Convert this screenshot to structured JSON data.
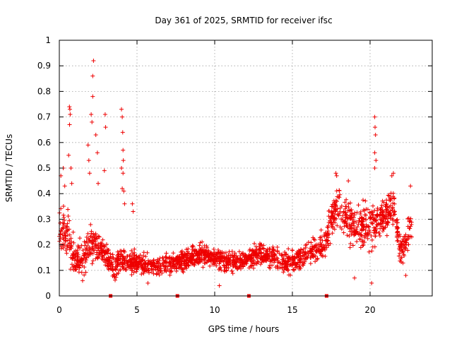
{
  "chart_data": {
    "type": "scatter",
    "title": "Day 361 of 2025, SRMTID for receiver ifsc",
    "xlabel": "GPS time / hours",
    "ylabel": "SRMTID / TECUs",
    "xlim": [
      0,
      24
    ],
    "ylim": [
      0,
      1
    ],
    "x_ticks": [
      0,
      5,
      10,
      15,
      20
    ],
    "y_ticks": [
      0,
      0.1,
      0.2,
      0.3,
      0.4,
      0.5,
      0.6,
      0.7,
      0.8,
      0.9,
      1
    ],
    "grid": true,
    "marker": "+",
    "series_color": "#ee0000",
    "gap_markers_x": [
      3.3,
      7.6,
      12.2,
      17.2
    ],
    "profile": [
      {
        "x": 0.0,
        "center": 0.28,
        "spread": 0.1
      },
      {
        "x": 0.5,
        "center": 0.24,
        "spread": 0.1
      },
      {
        "x": 1.0,
        "center": 0.13,
        "spread": 0.06
      },
      {
        "x": 1.5,
        "center": 0.14,
        "spread": 0.07
      },
      {
        "x": 2.0,
        "center": 0.22,
        "spread": 0.08
      },
      {
        "x": 2.5,
        "center": 0.18,
        "spread": 0.06
      },
      {
        "x": 3.0,
        "center": 0.16,
        "spread": 0.06
      },
      {
        "x": 3.5,
        "center": 0.11,
        "spread": 0.04
      },
      {
        "x": 4.0,
        "center": 0.14,
        "spread": 0.05
      },
      {
        "x": 5.0,
        "center": 0.13,
        "spread": 0.04
      },
      {
        "x": 6.0,
        "center": 0.12,
        "spread": 0.04
      },
      {
        "x": 7.0,
        "center": 0.12,
        "spread": 0.04
      },
      {
        "x": 8.0,
        "center": 0.14,
        "spread": 0.04
      },
      {
        "x": 9.0,
        "center": 0.16,
        "spread": 0.04
      },
      {
        "x": 10.0,
        "center": 0.15,
        "spread": 0.04
      },
      {
        "x": 11.0,
        "center": 0.13,
        "spread": 0.04
      },
      {
        "x": 12.0,
        "center": 0.14,
        "spread": 0.04
      },
      {
        "x": 13.0,
        "center": 0.17,
        "spread": 0.04
      },
      {
        "x": 14.0,
        "center": 0.14,
        "spread": 0.05
      },
      {
        "x": 15.0,
        "center": 0.13,
        "spread": 0.05
      },
      {
        "x": 16.0,
        "center": 0.17,
        "spread": 0.05
      },
      {
        "x": 17.0,
        "center": 0.19,
        "spread": 0.05
      },
      {
        "x": 17.5,
        "center": 0.3,
        "spread": 0.08
      },
      {
        "x": 18.0,
        "center": 0.34,
        "spread": 0.09
      },
      {
        "x": 19.0,
        "center": 0.27,
        "spread": 0.09
      },
      {
        "x": 20.0,
        "center": 0.27,
        "spread": 0.09
      },
      {
        "x": 21.0,
        "center": 0.31,
        "spread": 0.08
      },
      {
        "x": 21.5,
        "center": 0.36,
        "spread": 0.07
      },
      {
        "x": 22.0,
        "center": 0.16,
        "spread": 0.06
      },
      {
        "x": 22.7,
        "center": 0.27,
        "spread": 0.08
      }
    ],
    "peaks": [
      {
        "x": 0.1,
        "y": 0.47
      },
      {
        "x": 0.25,
        "y": 0.5
      },
      {
        "x": 0.35,
        "y": 0.43
      },
      {
        "x": 0.65,
        "y": 0.74
      },
      {
        "x": 0.68,
        "y": 0.73
      },
      {
        "x": 0.7,
        "y": 0.71
      },
      {
        "x": 0.66,
        "y": 0.67
      },
      {
        "x": 0.6,
        "y": 0.55
      },
      {
        "x": 0.75,
        "y": 0.5
      },
      {
        "x": 0.8,
        "y": 0.44
      },
      {
        "x": 1.85,
        "y": 0.59
      },
      {
        "x": 1.9,
        "y": 0.53
      },
      {
        "x": 1.95,
        "y": 0.48
      },
      {
        "x": 2.05,
        "y": 0.71
      },
      {
        "x": 2.1,
        "y": 0.68
      },
      {
        "x": 2.15,
        "y": 0.78
      },
      {
        "x": 2.15,
        "y": 0.86
      },
      {
        "x": 2.2,
        "y": 0.92
      },
      {
        "x": 2.35,
        "y": 0.63
      },
      {
        "x": 2.45,
        "y": 0.56
      },
      {
        "x": 2.5,
        "y": 0.44
      },
      {
        "x": 2.95,
        "y": 0.71
      },
      {
        "x": 2.98,
        "y": 0.66
      },
      {
        "x": 2.9,
        "y": 0.49
      },
      {
        "x": 4.0,
        "y": 0.73
      },
      {
        "x": 4.05,
        "y": 0.7
      },
      {
        "x": 4.08,
        "y": 0.64
      },
      {
        "x": 4.1,
        "y": 0.57
      },
      {
        "x": 4.12,
        "y": 0.53
      },
      {
        "x": 4.0,
        "y": 0.5
      },
      {
        "x": 4.1,
        "y": 0.48
      },
      {
        "x": 4.05,
        "y": 0.42
      },
      {
        "x": 4.15,
        "y": 0.41
      },
      {
        "x": 4.2,
        "y": 0.36
      },
      {
        "x": 4.7,
        "y": 0.36
      },
      {
        "x": 4.75,
        "y": 0.33
      },
      {
        "x": 20.3,
        "y": 0.7
      },
      {
        "x": 20.32,
        "y": 0.66
      },
      {
        "x": 20.35,
        "y": 0.63
      },
      {
        "x": 20.3,
        "y": 0.56
      },
      {
        "x": 20.38,
        "y": 0.53
      },
      {
        "x": 20.3,
        "y": 0.5
      },
      {
        "x": 17.8,
        "y": 0.48
      },
      {
        "x": 17.85,
        "y": 0.47
      },
      {
        "x": 18.6,
        "y": 0.45
      },
      {
        "x": 21.4,
        "y": 0.47
      },
      {
        "x": 21.5,
        "y": 0.48
      },
      {
        "x": 22.6,
        "y": 0.43
      },
      {
        "x": 20.1,
        "y": 0.05
      },
      {
        "x": 19.0,
        "y": 0.07
      },
      {
        "x": 10.3,
        "y": 0.04
      },
      {
        "x": 5.7,
        "y": 0.05
      },
      {
        "x": 22.3,
        "y": 0.08
      }
    ],
    "points_per_hour": 90
  }
}
